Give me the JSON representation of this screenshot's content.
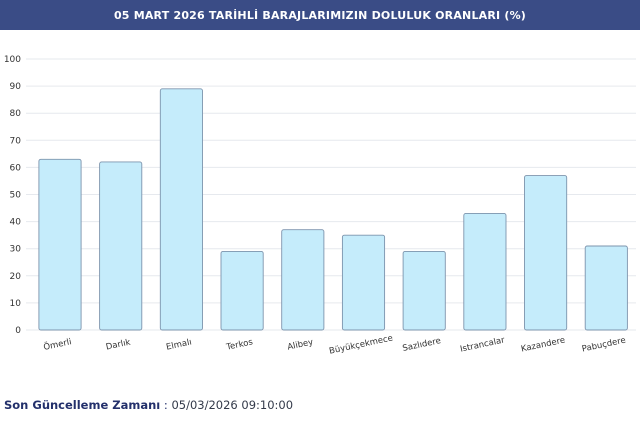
{
  "header": {
    "title": "05 MART 2026 TARİHLİ BARAJLARIMIZIN DOLULUK ORANLARI (%)"
  },
  "chart_data": {
    "type": "bar",
    "title": "05 MART 2026 TARİHLİ BARAJLARIMIZIN DOLULUK ORANLARI (%)",
    "xlabel": "",
    "ylabel": "",
    "categories": [
      "Ömerli",
      "Darlık",
      "Elmalı",
      "Terkos",
      "Alibey",
      "Büyükçekmece",
      "Sazlıdere",
      "Istrancalar",
      "Kazandere",
      "Pabuçdere"
    ],
    "values": [
      63,
      62,
      89,
      29,
      37,
      35,
      29,
      43,
      57,
      31
    ],
    "ylim": [
      0,
      100
    ],
    "yticks": [
      0,
      10,
      20,
      30,
      40,
      50,
      60,
      70,
      80,
      90,
      100
    ],
    "grid": true,
    "colors": {
      "bar_fill": "#c5ecfb",
      "bar_stroke": "#7d94ad",
      "grid": "#e6e9ee",
      "axis_text": "#333333"
    }
  },
  "footer": {
    "label": "Son Güncelleme Zamanı",
    "separator": ":",
    "value": "05/03/2026 09:10:00"
  }
}
